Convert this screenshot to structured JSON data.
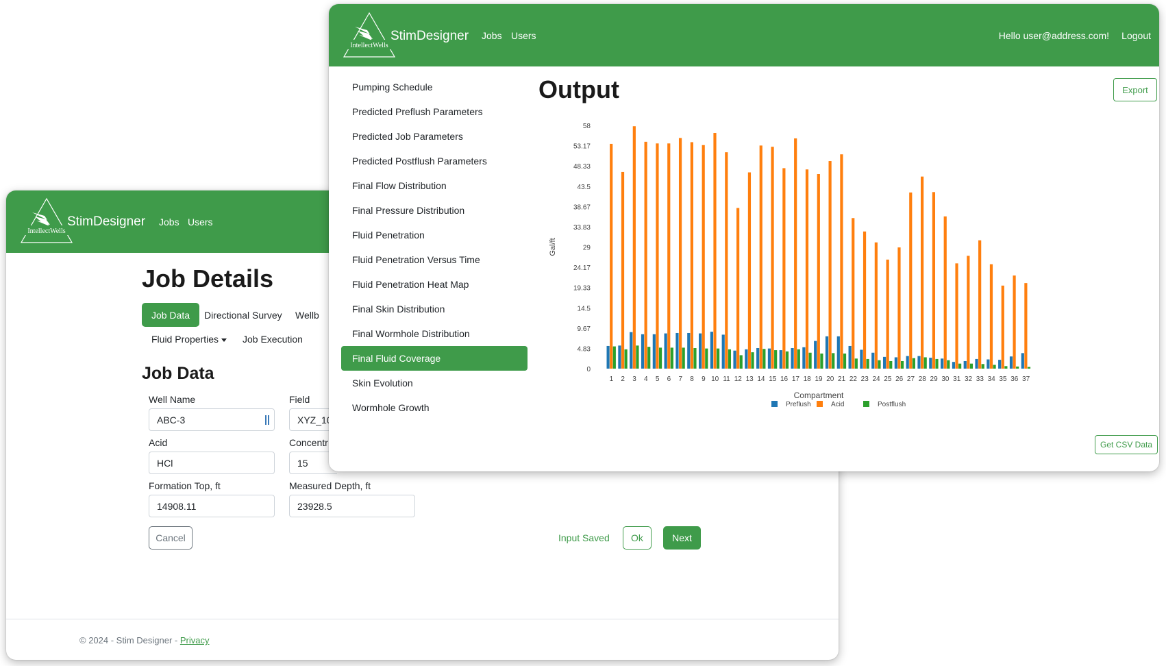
{
  "back_window": {
    "brand": {
      "name": "StimDesigner",
      "logo_text": "IntellectWells"
    },
    "nav": {
      "jobs": "Jobs",
      "users": "Users"
    },
    "page_title": "Job Details",
    "tabs": {
      "job_data": "Job Data",
      "directional_survey": "Directional Survey",
      "wellbore_partial": "Wellb",
      "fluid_properties": "Fluid Properties",
      "job_execution": "Job Execution"
    },
    "section_title": "Job Data",
    "fields": {
      "well_name": {
        "label": "Well Name",
        "value": "ABC-3"
      },
      "field": {
        "label": "Field",
        "value": "XYZ_10"
      },
      "acid": {
        "label": "Acid",
        "value": "HCl"
      },
      "concentration": {
        "label": "Concentr",
        "value": "15"
      },
      "formation_top": {
        "label": "Formation Top, ft",
        "value": "14908.11"
      },
      "measured_depth": {
        "label": "Measured Depth, ft",
        "value": "23928.5"
      }
    },
    "buttons": {
      "cancel": "Cancel",
      "ok": "Ok",
      "next": "Next"
    },
    "status": "Input Saved",
    "footer": {
      "text": "© 2024 - Stim Designer - ",
      "privacy": "Privacy"
    }
  },
  "front_window": {
    "brand": {
      "name": "StimDesigner",
      "logo_text": "IntellectWells"
    },
    "nav": {
      "jobs": "Jobs",
      "users": "Users"
    },
    "greeting": "Hello user@address.com!",
    "logout": "Logout",
    "sidebar": [
      {
        "label": "Pumping Schedule"
      },
      {
        "label": "Predicted Preflush Parameters"
      },
      {
        "label": "Predicted Job Parameters"
      },
      {
        "label": "Predicted Postflush Parameters"
      },
      {
        "label": "Final Flow Distribution"
      },
      {
        "label": "Final Pressure Distribution"
      },
      {
        "label": "Fluid Penetration"
      },
      {
        "label": "Fluid Penetration Versus Time"
      },
      {
        "label": "Fluid Penetration Heat Map"
      },
      {
        "label": "Final Skin Distribution"
      },
      {
        "label": "Final Wormhole Distribution"
      },
      {
        "label": "Final Fluid Coverage",
        "active": true
      },
      {
        "label": "Skin Evolution"
      },
      {
        "label": "Wormhole Growth"
      }
    ],
    "page_title": "Output",
    "export_label": "Export",
    "csv_label": "Get CSV Data"
  },
  "colors": {
    "brand_green": "#3f9b4a",
    "preflush": "#1f77b4",
    "acid": "#ff7f0e",
    "postflush": "#2ca02c"
  },
  "chart_data": {
    "type": "bar",
    "xlabel": "Compartment",
    "ylabel": "Gal/ft",
    "yticks": [
      "0",
      "4.83",
      "9.67",
      "14.5",
      "19.33",
      "24.17",
      "29",
      "33.83",
      "38.67",
      "43.5",
      "48.33",
      "53.17",
      "58"
    ],
    "ylim": [
      0,
      58
    ],
    "legend_position": "bottom",
    "categories": [
      "1",
      "2",
      "3",
      "4",
      "5",
      "6",
      "7",
      "8",
      "9",
      "10",
      "11",
      "12",
      "13",
      "14",
      "15",
      "16",
      "17",
      "18",
      "19",
      "20",
      "21",
      "22",
      "23",
      "24",
      "25",
      "26",
      "27",
      "28",
      "29",
      "30",
      "31",
      "32",
      "33",
      "34",
      "35",
      "36",
      "37"
    ],
    "series": [
      {
        "name": "Preflush",
        "values": [
          5.4,
          5.5,
          8.7,
          8.2,
          8.2,
          8.4,
          8.5,
          8.5,
          8.4,
          8.8,
          8.1,
          4.3,
          4.6,
          4.9,
          4.8,
          4.4,
          4.9,
          5.1,
          6.6,
          7.7,
          7.7,
          5.4,
          4.5,
          3.8,
          2.8,
          2.7,
          3.0,
          3.0,
          2.6,
          2.4,
          1.6,
          1.8,
          2.3,
          2.2,
          2.1,
          2.9,
          3.7
        ]
      },
      {
        "name": "Acid",
        "values": [
          53.6,
          46.9,
          57.8,
          54.1,
          53.7,
          53.7,
          55.0,
          54.0,
          53.3,
          56.2,
          51.6,
          38.3,
          46.8,
          53.2,
          52.9,
          47.8,
          54.9,
          47.5,
          46.4,
          49.5,
          51.1,
          35.9,
          32.7,
          30.1,
          26.0,
          28.9,
          42.0,
          45.8,
          42.1,
          36.3,
          25.1,
          26.9,
          30.6,
          24.9,
          19.8,
          22.2,
          20.4
        ]
      },
      {
        "name": "Postflush",
        "values": [
          5.3,
          4.6,
          5.5,
          5.2,
          5.0,
          5.0,
          5.0,
          4.9,
          4.8,
          4.8,
          4.6,
          3.2,
          3.9,
          4.7,
          4.4,
          4.1,
          4.6,
          3.8,
          3.6,
          3.7,
          3.6,
          2.4,
          2.3,
          2.0,
          1.8,
          1.8,
          2.5,
          2.7,
          2.3,
          2.0,
          1.2,
          1.2,
          1.1,
          0.9,
          0.6,
          0.5,
          0.4
        ]
      }
    ]
  }
}
